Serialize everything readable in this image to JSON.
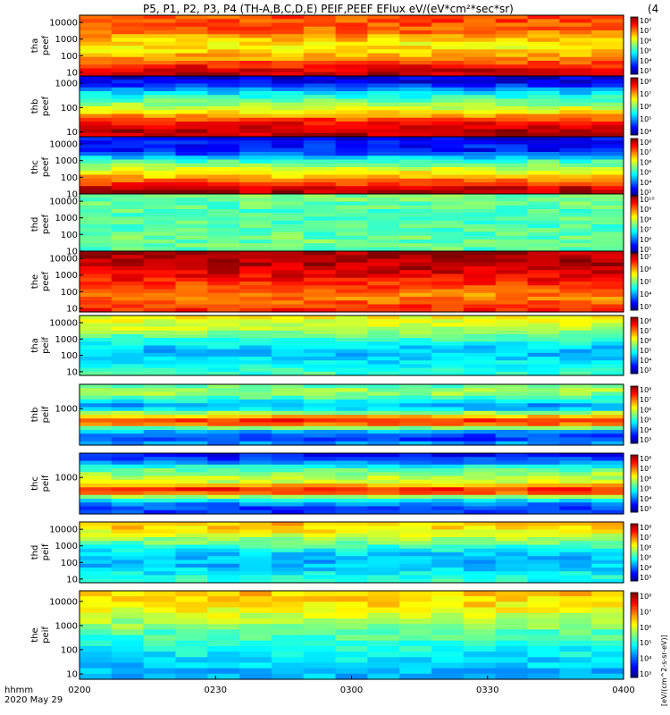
{
  "header": {
    "title": "P5, P1, P2, P3, P4 (TH-A,B,C,D,E) PEIF,PEEF EFlux eV/(eV*cm²*sec*sr)",
    "corner_tag": "(4"
  },
  "footer": {
    "time_label": "hhmm",
    "date_label": "2020 May 29"
  },
  "colorbar_unit_label": "[eV/(cm^2-s-sr-eV)]",
  "chart_data": {
    "type": "heatmap",
    "x_axis": {
      "ticks": [
        "0200",
        "0230",
        "0300",
        "0330",
        "0400"
      ],
      "range": [
        "0200",
        "0400"
      ]
    },
    "panels": [
      {
        "probe": "tha",
        "species": "peef",
        "ylabel_top": "tha",
        "ylabel_bottom": "peef",
        "yticks": [
          "10000",
          "1000",
          "100",
          "10"
        ],
        "colorbar_ticks": [
          "10^8",
          "10^7",
          "10^6",
          "10^5",
          "10^4",
          "10^3"
        ],
        "description": "bands top to bottom: orange, yellow-green, yellow, red at bottom"
      },
      {
        "probe": "thb",
        "species": "peef",
        "ylabel_top": "thb",
        "ylabel_bottom": "peef",
        "yticks": [
          "1000",
          "100",
          "10"
        ],
        "colorbar_ticks": [
          "10^8",
          "10^7",
          "10^6",
          "10^5",
          "10^4"
        ],
        "description": "blue top, cyan-green-yellow middle, red bottom"
      },
      {
        "probe": "thc",
        "species": "peef",
        "ylabel_top": "thc",
        "ylabel_bottom": "peef",
        "yticks": [
          "10000",
          "1000",
          "100",
          "10"
        ],
        "colorbar_ticks": [
          "10^8",
          "10^7",
          "10^6",
          "10^5",
          "10^4",
          "10^3"
        ],
        "description": "dark blue top, green-yellow middle, red bottom"
      },
      {
        "probe": "thd",
        "species": "peef",
        "ylabel_top": "thd",
        "ylabel_bottom": "peef",
        "yticks": [
          "10000",
          "1000",
          "100",
          "10"
        ],
        "colorbar_ticks": [
          "10^10",
          "10^9",
          "10^8",
          "10^7",
          "10^6",
          "10^5"
        ],
        "description": "mostly green"
      },
      {
        "probe": "the",
        "species": "peef",
        "ylabel_top": "the",
        "ylabel_bottom": "peef",
        "yticks": [
          "10000",
          "1000",
          "100",
          "10"
        ],
        "colorbar_ticks": [
          "10^7",
          "10^6",
          "10^5",
          "10^4",
          "10^3"
        ],
        "description": "red top, orange-yellow lower"
      },
      {
        "probe": "tha",
        "species": "peif",
        "ylabel_top": "tha",
        "ylabel_bottom": "peif",
        "yticks": [
          "10000",
          "1000",
          "100",
          "10"
        ],
        "colorbar_ticks": [
          "10^8",
          "10^7",
          "10^6",
          "10^5",
          "10^4",
          "10^3"
        ],
        "description": "yellow-green top, cyan-blue middle, cyan bottom"
      },
      {
        "probe": "thb",
        "species": "peif",
        "ylabel_top": "thb",
        "ylabel_bottom": "peif",
        "yticks": [
          "1000"
        ],
        "colorbar_ticks": [
          "10^8",
          "10^7",
          "10^6",
          "10^5",
          "10^4",
          "10^3"
        ],
        "description": "banded: green, blue, red band, blue"
      },
      {
        "probe": "thc",
        "species": "peif",
        "ylabel_top": "thc",
        "ylabel_bottom": "peif",
        "yticks": [
          "1000"
        ],
        "colorbar_ticks": [
          "10^8",
          "10^7",
          "10^6",
          "10^5",
          "10^4",
          "10^3"
        ],
        "description": "banded: blue top, green, red band, blue"
      },
      {
        "probe": "thd",
        "species": "peif",
        "ylabel_top": "thd",
        "ylabel_bottom": "peif",
        "yticks": [
          "10000",
          "1000",
          "100",
          "10"
        ],
        "colorbar_ticks": [
          "10^8",
          "10^7",
          "10^6",
          "10^5",
          "10^4",
          "10^3"
        ],
        "description": "yellow top, green, blue, cyan bottom"
      },
      {
        "probe": "the",
        "species": "peif",
        "ylabel_top": "the",
        "ylabel_bottom": "peif",
        "yticks": [
          "10000",
          "1000",
          "100",
          "10"
        ],
        "colorbar_ticks": [
          "10^8",
          "10^7",
          "10^6",
          "10^5",
          "10^4",
          "10^3"
        ],
        "description": "yellow top, green, cyan, blue bottom"
      }
    ]
  }
}
